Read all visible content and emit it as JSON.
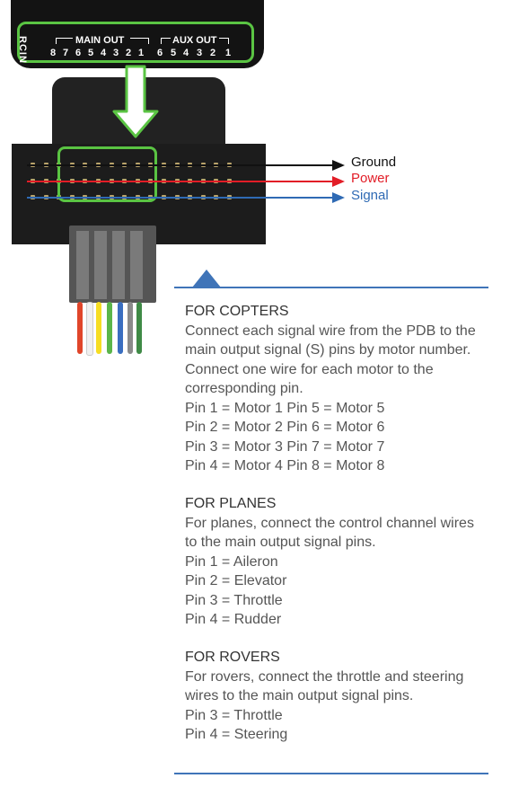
{
  "connector": {
    "rcin": "RCIN",
    "main_out_label": "MAIN OUT",
    "aux_out_label": "AUX OUT",
    "main_pins": [
      "8",
      "7",
      "6",
      "5",
      "4",
      "3",
      "2",
      "1"
    ],
    "aux_pins": [
      "6",
      "5",
      "4",
      "3",
      "2",
      "1"
    ]
  },
  "legend": {
    "ground": "Ground",
    "power": "Power",
    "signal": "Signal",
    "ground_color": "#111111",
    "power_color": "#e21d27",
    "signal_color": "#2f6ab4"
  },
  "sections": {
    "copters": {
      "title": "FOR COPTERS",
      "body": "Connect each signal wire from the PDB to the main output signal (S) pins by motor number. Connect one wire for each motor to the corresponding pin.",
      "lines": [
        "Pin 1 = Motor 1 Pin 5 = Motor 5",
        "Pin 2 = Motor 2 Pin 6 = Motor 6",
        "Pin 3 = Motor 3 Pin 7 = Motor 7",
        "Pin 4 = Motor 4 Pin 8 = Motor 8"
      ]
    },
    "planes": {
      "title": "FOR PLANES",
      "body": "For planes, connect the control channel wires to the main output signal pins.",
      "lines": [
        "Pin 1 = Aileron",
        "Pin 2 = Elevator",
        "Pin 3 = Throttle",
        "Pin 4 = Rudder"
      ]
    },
    "rovers": {
      "title": "FOR ROVERS",
      "body": "For rovers, connect the throttle and steering wires to the main output signal pins.",
      "lines": [
        "Pin 3 = Throttle",
        "Pin 4 = Steering"
      ]
    }
  },
  "colors": {
    "highlight_green": "#5ac443",
    "accent_blue": "#3f74b8"
  }
}
